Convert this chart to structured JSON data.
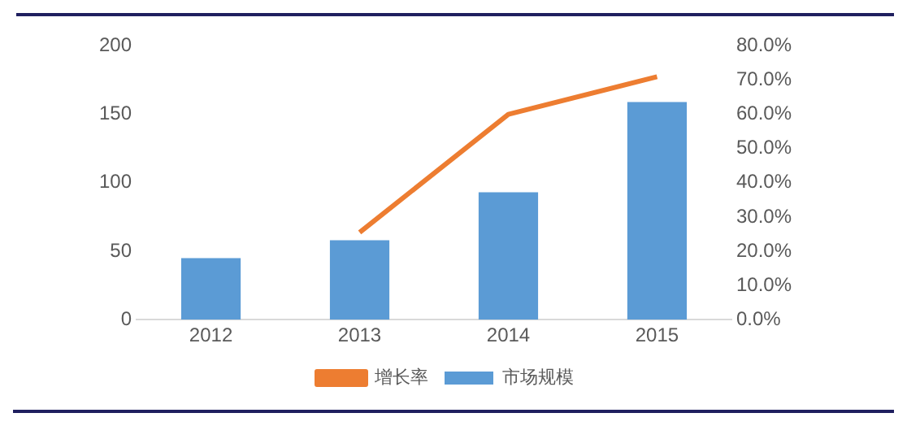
{
  "chart_data": {
    "type": "bar",
    "categories": [
      "2012",
      "2013",
      "2014",
      "2015"
    ],
    "series": [
      {
        "name": "市场规模",
        "color": "#5b9bd5",
        "values": [
          45,
          58,
          93,
          159
        ]
      },
      {
        "name": "增长率",
        "type": "line",
        "axis": "y2",
        "color": "#ed7d31",
        "values": [
          null,
          25.5,
          60,
          71
        ]
      }
    ],
    "ylim": [
      0,
      200
    ],
    "yticks": [
      0,
      50,
      100,
      150,
      200
    ],
    "y2lim": [
      0,
      80
    ],
    "y2ticks": [
      {
        "value": 0,
        "label": "0.0%"
      },
      {
        "value": 10,
        "label": "10.0%"
      },
      {
        "value": 20,
        "label": "20.0%"
      },
      {
        "value": 30,
        "label": "30.0%"
      },
      {
        "value": 40,
        "label": "40.0%"
      },
      {
        "value": 50,
        "label": "50.0%"
      },
      {
        "value": 60,
        "label": "60.0%"
      },
      {
        "value": 70,
        "label": "70.0%"
      },
      {
        "value": 80,
        "label": "80.0%"
      }
    ],
    "grid": false,
    "legend": "bottom",
    "marker": "none"
  }
}
